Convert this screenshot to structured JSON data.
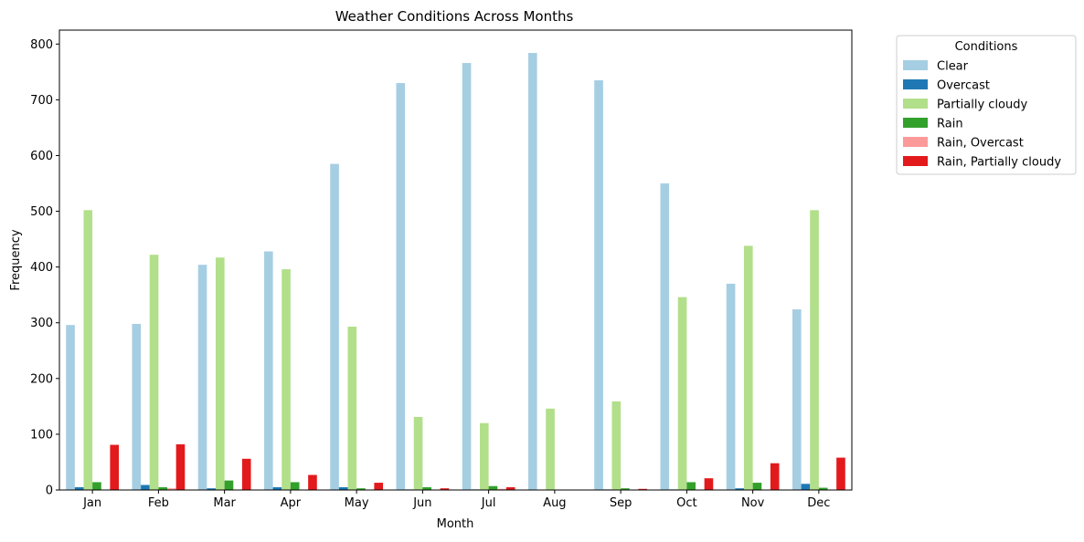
{
  "chart_data": {
    "type": "bar",
    "title": "Weather Conditions Across Months",
    "xlabel": "Month",
    "ylabel": "Frequency",
    "ylim": [
      0,
      825
    ],
    "yticks": [
      0,
      100,
      200,
      300,
      400,
      500,
      600,
      700,
      800
    ],
    "grid": false,
    "legend": {
      "title": "Conditions",
      "placement": "outside-top-right"
    },
    "categories": [
      "Jan",
      "Feb",
      "Mar",
      "Apr",
      "May",
      "Jun",
      "Jul",
      "Aug",
      "Sep",
      "Oct",
      "Nov",
      "Dec"
    ],
    "series": [
      {
        "name": "Clear",
        "color": "#a6cee3",
        "values": [
          296,
          298,
          404,
          428,
          585,
          730,
          766,
          784,
          735,
          550,
          370,
          324
        ]
      },
      {
        "name": "Overcast",
        "color": "#1f78b4",
        "values": [
          5,
          9,
          3,
          5,
          5,
          1,
          1,
          0,
          1,
          1,
          3,
          11
        ]
      },
      {
        "name": "Partially cloudy",
        "color": "#b2df8a",
        "values": [
          502,
          422,
          417,
          396,
          293,
          131,
          120,
          146,
          159,
          346,
          438,
          502
        ]
      },
      {
        "name": "Rain",
        "color": "#33a02c",
        "values": [
          14,
          5,
          17,
          14,
          3,
          5,
          7,
          0,
          3,
          14,
          13,
          4
        ]
      },
      {
        "name": "Rain, Overcast",
        "color": "#fb9a99",
        "values": [
          0,
          3,
          0,
          0,
          0,
          0,
          2,
          0,
          0,
          0,
          0,
          0
        ]
      },
      {
        "name": "Rain, Partially cloudy",
        "color": "#e31a1c",
        "values": [
          81,
          82,
          56,
          27,
          13,
          3,
          5,
          0,
          2,
          21,
          48,
          58
        ]
      }
    ]
  }
}
